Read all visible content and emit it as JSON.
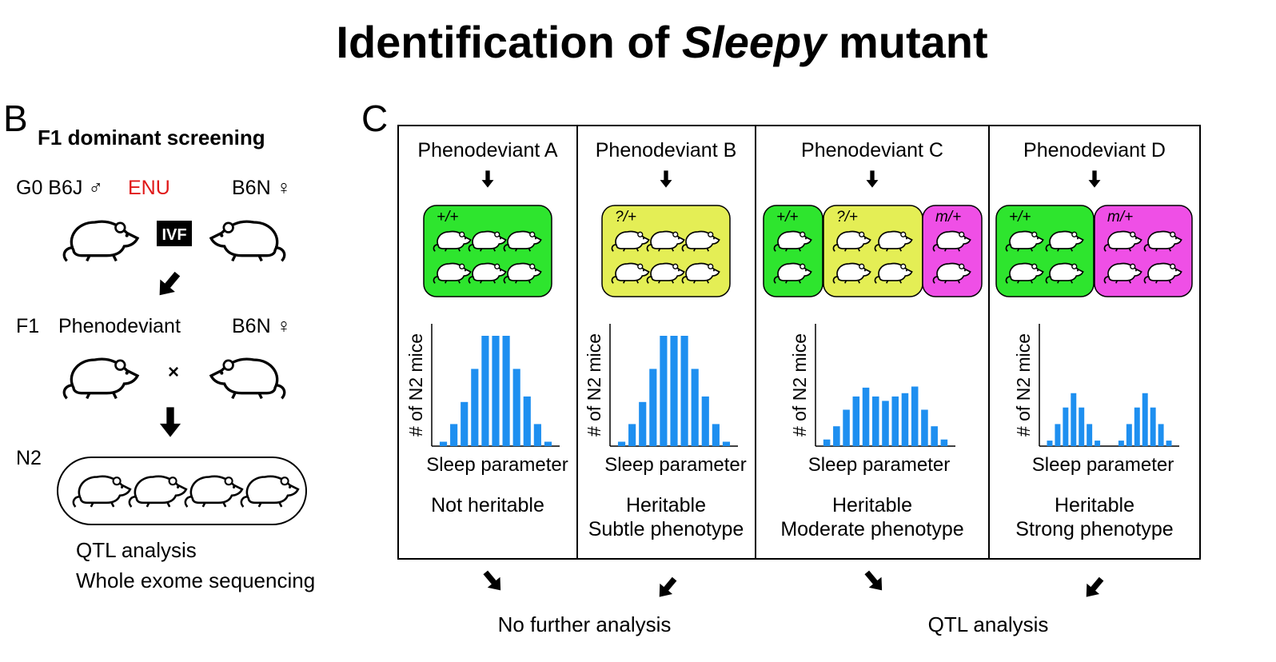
{
  "title": {
    "before": "Identification of",
    "italic": "Sleepy",
    "after": "mutant"
  },
  "panel_b": {
    "letter": "B",
    "heading": "F1 dominant screening",
    "g0": "G0 B6J ♂",
    "enu": "ENU",
    "b6n_top": "B6N ♀",
    "ivf": "IVF",
    "f1": "F1",
    "phenodeviant": "Phenodeviant",
    "b6n_mid": "B6N ♀",
    "cross": "×",
    "n2": "N2",
    "analysis": [
      "QTL analysis",
      "Whole exome sequencing"
    ]
  },
  "panel_c": {
    "letter": "C",
    "columns": [
      {
        "title": "Phenodeviant A",
        "groups": [
          {
            "label": "+/+",
            "color": "#2ee52e"
          }
        ],
        "y_label": "# of N2 mice",
        "x_label": "Sleep parameter",
        "outcome": [
          "Not heritable"
        ],
        "histogram": [
          4,
          20,
          40,
          70,
          100,
          100,
          100,
          70,
          45,
          20,
          4
        ],
        "bar_color": "#1e8ff0"
      },
      {
        "title": "Phenodeviant B",
        "groups": [
          {
            "label": "?/+",
            "color": "#e4ee55"
          }
        ],
        "y_label": "# of N2 mice",
        "x_label": "Sleep parameter",
        "outcome": [
          "Heritable",
          "Subtle phenotype"
        ],
        "histogram": [
          4,
          20,
          40,
          70,
          100,
          100,
          100,
          70,
          45,
          20,
          4
        ],
        "bar_color": "#1e8ff0"
      },
      {
        "title": "Phenodeviant C",
        "groups": [
          {
            "label": "+/+",
            "color": "#2ee52e"
          },
          {
            "label": "?/+",
            "color": "#e4ee55"
          },
          {
            "label": "m/+",
            "color": "#ef4fe6"
          }
        ],
        "y_label": "# of N2 mice",
        "x_label": "Sleep parameter",
        "outcome": [
          "Heritable",
          "Moderate phenotype"
        ],
        "histogram": [
          6,
          18,
          33,
          45,
          53,
          45,
          41,
          45,
          48,
          54,
          33,
          18,
          6
        ],
        "bar_color": "#1e8ff0"
      },
      {
        "title": "Phenodeviant D",
        "groups": [
          {
            "label": "+/+",
            "color": "#2ee52e"
          },
          {
            "label": "m/+",
            "color": "#ef4fe6"
          }
        ],
        "y_label": "# of N2 mice",
        "x_label": "Sleep parameter",
        "outcome": [
          "Heritable",
          "Strong phenotype"
        ],
        "histogram": [
          5,
          20,
          35,
          48,
          35,
          20,
          5,
          0,
          0,
          5,
          20,
          35,
          48,
          35,
          20,
          5
        ],
        "bar_color": "#1e8ff0"
      }
    ],
    "results": [
      "No further analysis",
      "QTL analysis"
    ]
  }
}
